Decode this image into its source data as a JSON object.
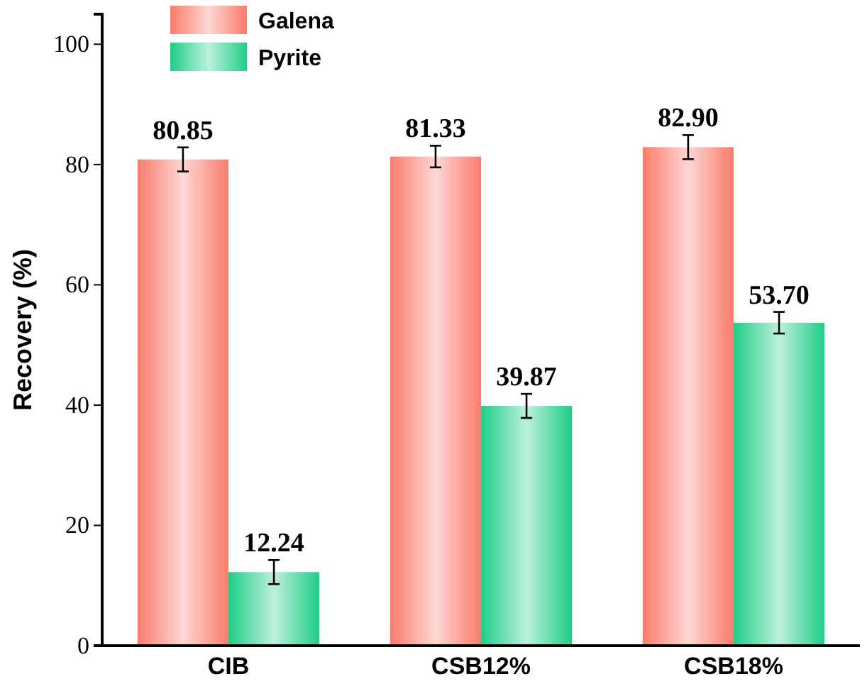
{
  "chart_data": {
    "type": "bar",
    "ylabel": "Recovery (%)",
    "categories": [
      "CIB",
      "CSB12%",
      "CSB18%"
    ],
    "series": [
      {
        "name": "Galena",
        "color": "#fa7b6b",
        "values": [
          80.85,
          81.33,
          82.9
        ],
        "errors": [
          2,
          1.8,
          2
        ],
        "value_labels": [
          "80.85",
          "81.33",
          "82.90"
        ]
      },
      {
        "name": "Pyrite",
        "color": "#1fce88",
        "values": [
          12.24,
          39.87,
          53.7
        ],
        "errors": [
          2,
          2,
          1.8
        ],
        "value_labels": [
          "12.24",
          "39.87",
          "53.70"
        ]
      }
    ],
    "ylim": [
      0,
      105
    ],
    "yticks": [
      0,
      20,
      40,
      60,
      80,
      100
    ],
    "grid": false,
    "legend": "top left"
  }
}
